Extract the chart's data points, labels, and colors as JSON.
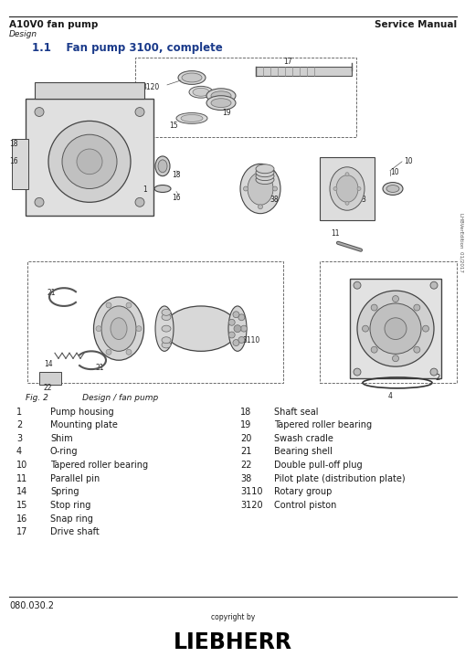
{
  "header_left": "A10V0 fan pump",
  "header_right": "Service Manual",
  "subheader": "Design",
  "section_title": "1.1    Fan pump 3100, complete",
  "fig_caption_italic": "Fig. 2",
  "fig_caption_normal": "      Design / fan pump",
  "parts_left": [
    [
      "1",
      "Pump housing"
    ],
    [
      "2",
      "Mounting plate"
    ],
    [
      "3",
      "Shim"
    ],
    [
      "4",
      "O-ring"
    ],
    [
      "10",
      "Tapered roller bearing"
    ],
    [
      "11",
      "Parallel pin"
    ],
    [
      "14",
      "Spring"
    ],
    [
      "15",
      "Stop ring"
    ],
    [
      "16",
      "Snap ring"
    ],
    [
      "17",
      "Drive shaft"
    ]
  ],
  "parts_right": [
    [
      "18",
      "Shaft seal"
    ],
    [
      "19",
      "Tapered roller bearing"
    ],
    [
      "20",
      "Swash cradle"
    ],
    [
      "21",
      "Bearing shell"
    ],
    [
      "22",
      "Double pull-off plug"
    ],
    [
      "38",
      "Pilot plate (distribution plate)"
    ],
    [
      "3110",
      "Rotary group"
    ],
    [
      "3120",
      "Control piston"
    ]
  ],
  "footer_left": "080.030.2",
  "footer_center": "copyright by",
  "footer_logo": "LIEBHERR",
  "side_text": "LHBVerEdition  01/2017",
  "bg_color": "#ffffff",
  "text_color": "#1a1a1a",
  "line_color": "#333333"
}
